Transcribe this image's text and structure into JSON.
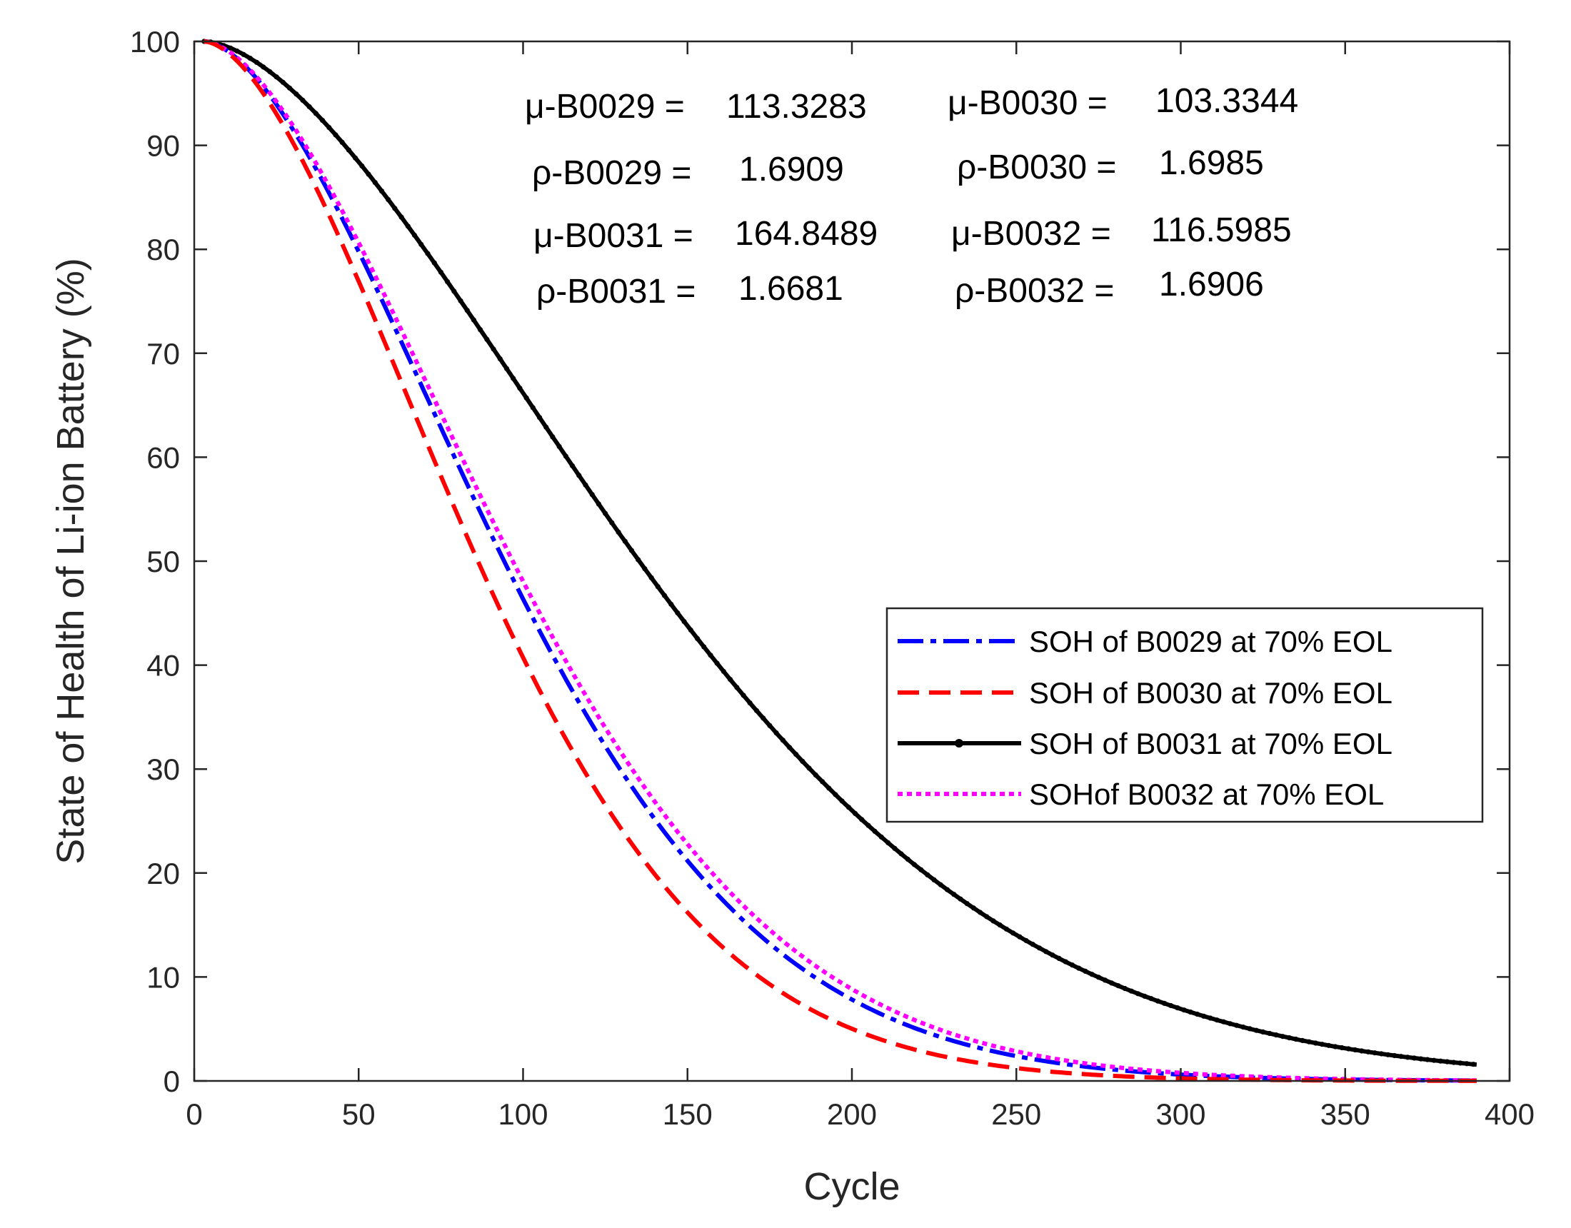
{
  "chart_data": {
    "type": "line",
    "title": "",
    "xlabel": "Cycle",
    "ylabel": "State of Health of Li-ion Battery (%)",
    "xlim": [
      0,
      400
    ],
    "ylim": [
      0,
      100
    ],
    "xticks": [
      0,
      50,
      100,
      150,
      200,
      250,
      300,
      350,
      400
    ],
    "yticks": [
      0,
      10,
      20,
      30,
      40,
      50,
      60,
      70,
      80,
      90,
      100
    ],
    "grid": false,
    "legend_position": "center-right",
    "x_start": 3,
    "x_end": 390,
    "series": [
      {
        "name": "SOH of B0029 at 70% EOL",
        "mu": 113.3283,
        "rho": 1.6909,
        "color": "#0000ff",
        "style": "dashdot",
        "width": 6
      },
      {
        "name": "SOH of B0030 at 70% EOL",
        "mu": 103.3344,
        "rho": 1.6985,
        "color": "#ff0000",
        "style": "dashed",
        "width": 6
      },
      {
        "name": "SOH of B0031 at 70% EOL",
        "mu": 164.8489,
        "rho": 1.6681,
        "color": "#000000",
        "style": "solid-dot",
        "width": 6
      },
      {
        "name": "SOHof  B0032 at 70% EOL",
        "mu": 116.5985,
        "rho": 1.6906,
        "color": "#ff00ff",
        "style": "dotted",
        "width": 6
      }
    ],
    "annotations": [
      {
        "label": "μ-B0029 =",
        "value": "113.3283"
      },
      {
        "label": "ρ-B0029 =",
        "value": "1.6909"
      },
      {
        "label": "μ-B0031 =",
        "value": "164.8489"
      },
      {
        "label": "ρ-B0031 =",
        "value": "1.6681"
      },
      {
        "label": "μ-B0030 =",
        "value": "103.3344"
      },
      {
        "label": "ρ-B0030 =",
        "value": "1.6985"
      },
      {
        "label": "μ-B0032 =",
        "value": "116.5985"
      },
      {
        "label": "ρ-B0032 =",
        "value": "1.6906"
      }
    ]
  }
}
